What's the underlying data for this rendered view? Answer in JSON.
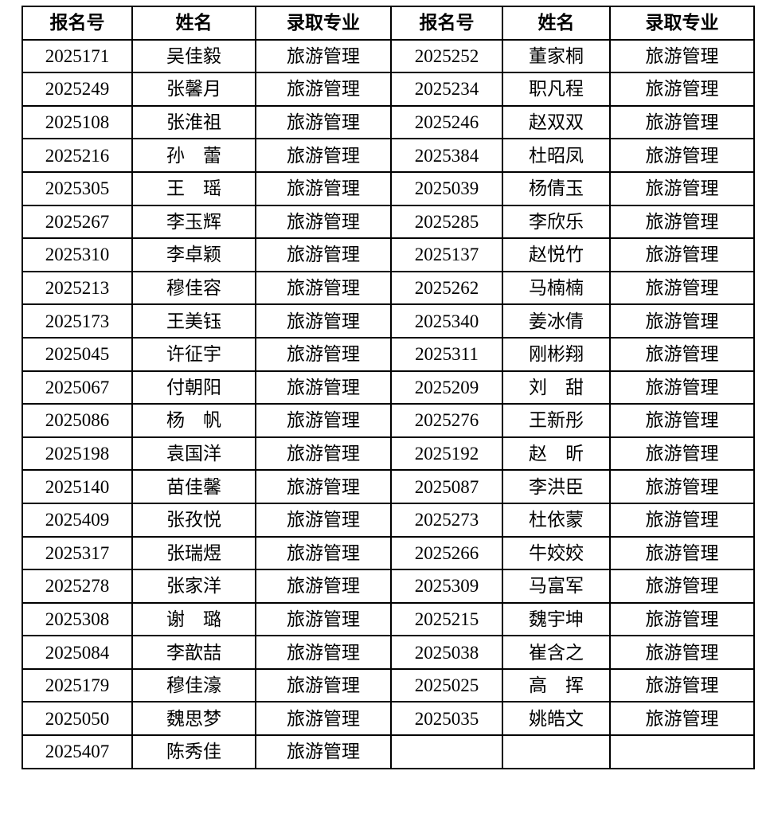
{
  "headers": [
    "报名号",
    "姓名",
    "录取专业",
    "报名号",
    "姓名",
    "录取专业"
  ],
  "rows": [
    {
      "left": [
        "2025171",
        "吴佳毅",
        "旅游管理"
      ],
      "right": [
        "2025252",
        "董家桐",
        "旅游管理"
      ]
    },
    {
      "left": [
        "2025249",
        "张馨月",
        "旅游管理"
      ],
      "right": [
        "2025234",
        "职凡程",
        "旅游管理"
      ]
    },
    {
      "left": [
        "2025108",
        "张淮祖",
        "旅游管理"
      ],
      "right": [
        "2025246",
        "赵双双",
        "旅游管理"
      ]
    },
    {
      "left": [
        "2025216",
        "孙　蕾",
        "旅游管理"
      ],
      "right": [
        "2025384",
        "杜昭凤",
        "旅游管理"
      ]
    },
    {
      "left": [
        "2025305",
        "王　瑶",
        "旅游管理"
      ],
      "right": [
        "2025039",
        "杨倩玉",
        "旅游管理"
      ]
    },
    {
      "left": [
        "2025267",
        "李玉辉",
        "旅游管理"
      ],
      "right": [
        "2025285",
        "李欣乐",
        "旅游管理"
      ]
    },
    {
      "left": [
        "2025310",
        "李卓颖",
        "旅游管理"
      ],
      "right": [
        "2025137",
        "赵悦竹",
        "旅游管理"
      ]
    },
    {
      "left": [
        "2025213",
        "穆佳容",
        "旅游管理"
      ],
      "right": [
        "2025262",
        "马楠楠",
        "旅游管理"
      ]
    },
    {
      "left": [
        "2025173",
        "王美钰",
        "旅游管理"
      ],
      "right": [
        "2025340",
        "姜冰倩",
        "旅游管理"
      ]
    },
    {
      "left": [
        "2025045",
        "许征宇",
        "旅游管理"
      ],
      "right": [
        "2025311",
        "刚彬翔",
        "旅游管理"
      ]
    },
    {
      "left": [
        "2025067",
        "付朝阳",
        "旅游管理"
      ],
      "right": [
        "2025209",
        "刘　甜",
        "旅游管理"
      ]
    },
    {
      "left": [
        "2025086",
        "杨　帆",
        "旅游管理"
      ],
      "right": [
        "2025276",
        "王新彤",
        "旅游管理"
      ]
    },
    {
      "left": [
        "2025198",
        "袁国洋",
        "旅游管理"
      ],
      "right": [
        "2025192",
        "赵　昕",
        "旅游管理"
      ]
    },
    {
      "left": [
        "2025140",
        "苗佳馨",
        "旅游管理"
      ],
      "right": [
        "2025087",
        "李洪臣",
        "旅游管理"
      ]
    },
    {
      "left": [
        "2025409",
        "张孜悦",
        "旅游管理"
      ],
      "right": [
        "2025273",
        "杜依蒙",
        "旅游管理"
      ]
    },
    {
      "left": [
        "2025317",
        "张瑞煜",
        "旅游管理"
      ],
      "right": [
        "2025266",
        "牛姣姣",
        "旅游管理"
      ]
    },
    {
      "left": [
        "2025278",
        "张家洋",
        "旅游管理"
      ],
      "right": [
        "2025309",
        "马富军",
        "旅游管理"
      ]
    },
    {
      "left": [
        "2025308",
        "谢　璐",
        "旅游管理"
      ],
      "right": [
        "2025215",
        "魏宇坤",
        "旅游管理"
      ]
    },
    {
      "left": [
        "2025084",
        "李歆喆",
        "旅游管理"
      ],
      "right": [
        "2025038",
        "崔含之",
        "旅游管理"
      ]
    },
    {
      "left": [
        "2025179",
        "穆佳濠",
        "旅游管理"
      ],
      "right": [
        "2025025",
        "高　挥",
        "旅游管理"
      ]
    },
    {
      "left": [
        "2025050",
        "魏思梦",
        "旅游管理"
      ],
      "right": [
        "2025035",
        "姚皓文",
        "旅游管理"
      ]
    },
    {
      "left": [
        "2025407",
        "陈秀佳",
        "旅游管理"
      ],
      "right": [
        "",
        "",
        ""
      ]
    }
  ]
}
